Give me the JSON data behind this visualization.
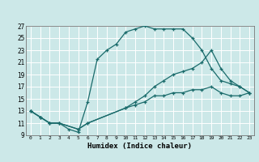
{
  "xlabel": "Humidex (Indice chaleur)",
  "ylabel": "",
  "xlim": [
    -0.5,
    23.5
  ],
  "ylim": [
    9,
    27
  ],
  "xticks": [
    0,
    1,
    2,
    3,
    4,
    5,
    6,
    7,
    8,
    9,
    10,
    11,
    12,
    13,
    14,
    15,
    16,
    17,
    18,
    19,
    20,
    21,
    22,
    23
  ],
  "yticks": [
    9,
    11,
    13,
    15,
    17,
    19,
    21,
    23,
    25,
    27
  ],
  "bg_color": "#cce8e8",
  "grid_color": "#ffffff",
  "line_color": "#1a6b6b",
  "lines": [
    {
      "x": [
        0,
        1,
        2,
        3,
        4,
        5,
        6,
        7,
        8,
        9,
        10,
        11,
        12,
        13,
        14,
        15,
        16,
        17,
        18,
        19,
        20,
        21,
        22,
        23
      ],
      "y": [
        13,
        12,
        11,
        11,
        10,
        9.5,
        14.5,
        21.5,
        23,
        24,
        26,
        26.5,
        27,
        26.5,
        26.5,
        26.5,
        26.5,
        25,
        23,
        20,
        18,
        17.5,
        17,
        16
      ]
    },
    {
      "x": [
        0,
        1,
        2,
        3,
        5,
        6,
        10,
        11,
        12,
        13,
        14,
        15,
        16,
        17,
        18,
        19,
        20,
        21,
        22,
        23
      ],
      "y": [
        13,
        12,
        11,
        11,
        10,
        11,
        13.5,
        14.5,
        15.5,
        17,
        18,
        19,
        19.5,
        20,
        21,
        23,
        20,
        18,
        17,
        16
      ]
    },
    {
      "x": [
        0,
        1,
        2,
        3,
        5,
        6,
        10,
        11,
        12,
        13,
        14,
        15,
        16,
        17,
        18,
        19,
        20,
        21,
        22,
        23
      ],
      "y": [
        13,
        12,
        11,
        11,
        10,
        11,
        13.5,
        14,
        14.5,
        15.5,
        15.5,
        16,
        16,
        16.5,
        16.5,
        17,
        16,
        15.5,
        15.5,
        16
      ]
    }
  ]
}
